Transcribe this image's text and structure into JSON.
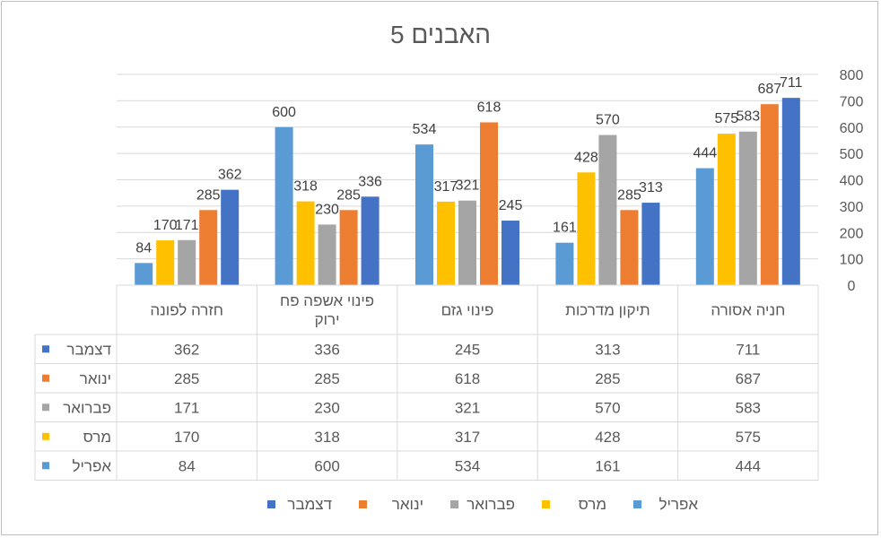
{
  "chart_data": {
    "type": "bar",
    "title": "5 האבנים",
    "categories": [
      "חזרה לפונה",
      "פינוי אשפה פח ירוק",
      "פינוי גזם",
      "תיקון מדרכות",
      "חניה אסורה"
    ],
    "category_lines": [
      [
        "חזרה לפונה"
      ],
      [
        "פינוי אשפה פח",
        "ירוק"
      ],
      [
        "פינוי גזם"
      ],
      [
        "תיקון מדרכות"
      ],
      [
        "חניה אסורה"
      ]
    ],
    "series": [
      {
        "name": "אפריל",
        "color": "#5B9BD5",
        "values": [
          84,
          600,
          534,
          161,
          444
        ]
      },
      {
        "name": "מרס",
        "color": "#FFC000",
        "values": [
          170,
          318,
          317,
          428,
          575
        ]
      },
      {
        "name": "פברואר",
        "color": "#A5A5A5",
        "values": [
          171,
          230,
          321,
          570,
          583
        ]
      },
      {
        "name": "ינואר",
        "color": "#ED7D31",
        "values": [
          285,
          285,
          618,
          285,
          687
        ]
      },
      {
        "name": "דצמבר",
        "color": "#4472C4",
        "values": [
          362,
          336,
          245,
          313,
          711
        ]
      }
    ],
    "table_row_order": [
      "דצמבר",
      "ינואר",
      "פברואר",
      "מרס",
      "אפריל"
    ],
    "ylim": [
      0,
      800
    ],
    "yticks": [
      0,
      100,
      200,
      300,
      400,
      500,
      600,
      700,
      800
    ],
    "y_axis_side": "right",
    "grid": true,
    "data_labels": true,
    "data_table": true,
    "legend_position": "bottom"
  }
}
